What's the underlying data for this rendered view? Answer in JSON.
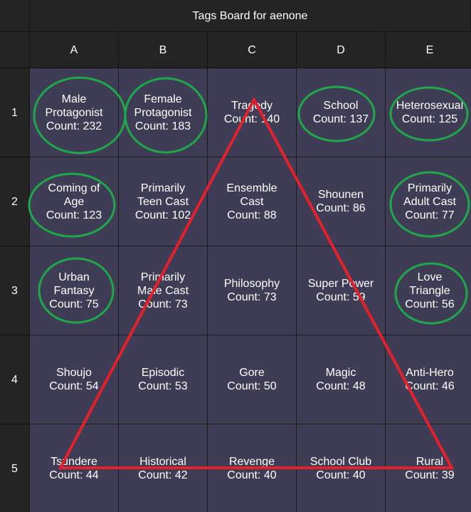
{
  "header": {
    "title": "Tags Board for aenone"
  },
  "columns": [
    "A",
    "B",
    "C",
    "D",
    "E"
  ],
  "rows": [
    "1",
    "2",
    "3",
    "4",
    "5"
  ],
  "cells": [
    [
      {
        "name": [
          "Male",
          "Protagonist"
        ],
        "count": "Count: 232"
      },
      {
        "name": [
          "Female",
          "Protagonist"
        ],
        "count": "Count: 183"
      },
      {
        "name": [
          "Tragedy"
        ],
        "count": "Count: 140"
      },
      {
        "name": [
          "School"
        ],
        "count": "Count: 137"
      },
      {
        "name": [
          "Heterosexual"
        ],
        "count": "Count: 125"
      }
    ],
    [
      {
        "name": [
          "Coming of",
          "Age"
        ],
        "count": "Count: 123"
      },
      {
        "name": [
          "Primarily",
          "Teen Cast"
        ],
        "count": "Count: 102"
      },
      {
        "name": [
          "Ensemble",
          "Cast"
        ],
        "count": "Count: 88"
      },
      {
        "name": [
          "Shounen"
        ],
        "count": "Count: 86"
      },
      {
        "name": [
          "Primarily",
          "Adult Cast"
        ],
        "count": "Count: 77"
      }
    ],
    [
      {
        "name": [
          "Urban",
          "Fantasy"
        ],
        "count": "Count: 75"
      },
      {
        "name": [
          "Primarily",
          "Male Cast"
        ],
        "count": "Count: 73"
      },
      {
        "name": [
          "Philosophy"
        ],
        "count": "Count: 73"
      },
      {
        "name": [
          "Super Power"
        ],
        "count": "Count: 59"
      },
      {
        "name": [
          "Love",
          "Triangle"
        ],
        "count": "Count: 56"
      }
    ],
    [
      {
        "name": [
          "Shoujo"
        ],
        "count": "Count: 54"
      },
      {
        "name": [
          "Episodic"
        ],
        "count": "Count: 53"
      },
      {
        "name": [
          "Gore"
        ],
        "count": "Count: 50"
      },
      {
        "name": [
          "Magic"
        ],
        "count": "Count: 48"
      },
      {
        "name": [
          "Anti-Hero"
        ],
        "count": "Count: 46"
      }
    ],
    [
      {
        "name": [
          "Tsundere"
        ],
        "count": "Count: 44"
      },
      {
        "name": [
          "Historical"
        ],
        "count": "Count: 42"
      },
      {
        "name": [
          "Revenge"
        ],
        "count": "Count: 40"
      },
      {
        "name": [
          "School Club"
        ],
        "count": "Count: 40"
      },
      {
        "name": [
          "Rural"
        ],
        "count": "Count: 39"
      }
    ]
  ]
}
